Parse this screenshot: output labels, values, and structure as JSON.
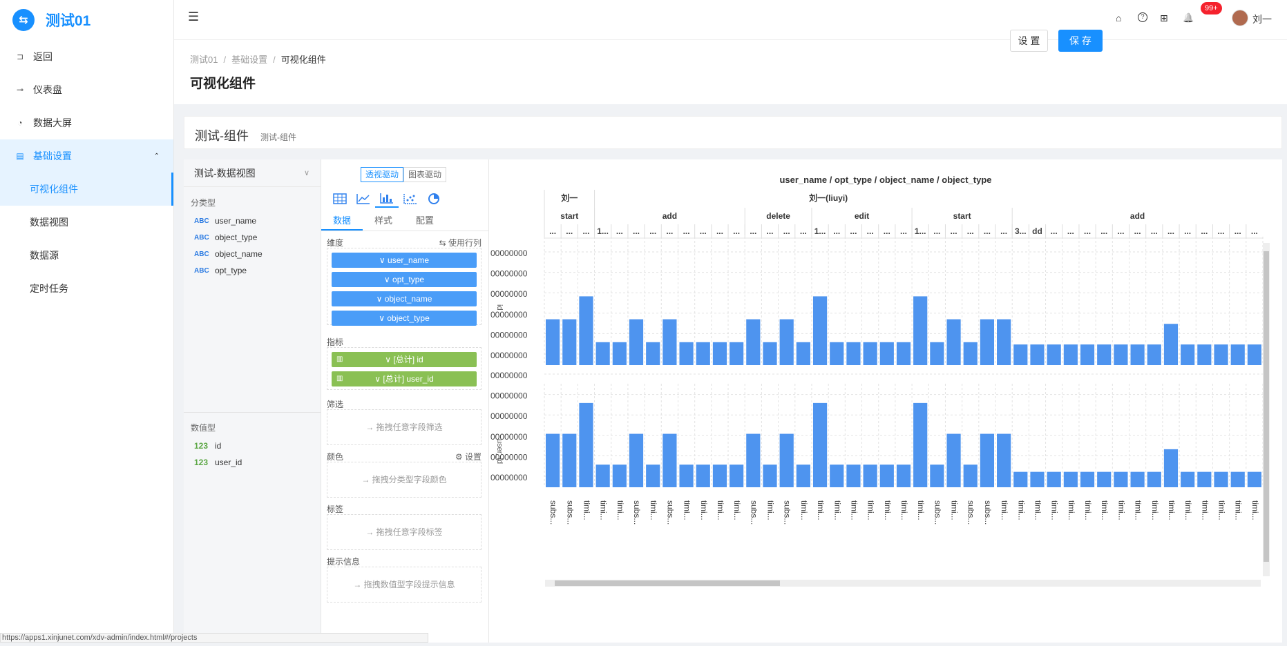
{
  "app": {
    "logo_glyph": "⇆",
    "title": "测试01"
  },
  "sidebar": {
    "items": [
      {
        "icon": "back-icon",
        "glyph": "⊐",
        "label": "返回"
      },
      {
        "icon": "dashboard-icon",
        "glyph": "⊸",
        "label": "仪表盘"
      },
      {
        "icon": "screen-icon",
        "glyph": "◔",
        "label": "数据大屏"
      },
      {
        "icon": "settings-doc-icon",
        "glyph": "▤",
        "label": "基础设置"
      }
    ],
    "caret": "⌃",
    "subitems": [
      {
        "label": "可视化组件"
      },
      {
        "label": "数据视图"
      },
      {
        "label": "数据源"
      },
      {
        "label": "定时任务"
      }
    ]
  },
  "header": {
    "menu_toggle": "☰",
    "icons": {
      "home": "⌂",
      "help": "?",
      "apps": "⊞",
      "bell": "🔔"
    },
    "badge": "99+",
    "user": "刘一"
  },
  "breadcrumb": {
    "items": [
      "测试01",
      "基础设置",
      "可视化组件"
    ],
    "sep": "/"
  },
  "page_title": "可视化组件",
  "buttons": {
    "settings": "设 置",
    "save": "保 存"
  },
  "component": {
    "name": "测试-组件",
    "sub": "测试-组件"
  },
  "fields": {
    "view": "测试-数据视图",
    "chevron": "∨",
    "category_label": "分类型",
    "category_type": "ABC",
    "category": [
      "user_name",
      "object_type",
      "object_name",
      "opt_type"
    ],
    "numeric_label": "数值型",
    "numeric_type": "123",
    "numeric": [
      "id",
      "user_id"
    ]
  },
  "config": {
    "mode_pivot": "透视驱动",
    "mode_chart": "图表驱动",
    "tabs": [
      "数据",
      "样式",
      "配置"
    ],
    "dim_label": "维度",
    "dim_action": "⇆ 使用行列",
    "dimensions": [
      "∨ user_name",
      "∨ opt_type",
      "∨ object_name",
      "∨ object_type"
    ],
    "metric_label": "指标",
    "metrics": [
      "∨ [总计] id",
      "∨ [总计] user_id"
    ],
    "filter_label": "筛选",
    "filter_hint": "→ 拖拽任意字段筛选",
    "color_label": "颜色",
    "color_action": "⚙ 设置",
    "color_hint": "→ 拖拽分类型字段颜色",
    "tag_label": "标签",
    "tag_hint": "→ 拖拽任意字段标签",
    "tooltip_label": "提示信息",
    "tooltip_hint": "→ 拖拽数值型字段提示信息"
  },
  "chart_data": {
    "type": "bar",
    "title": "user_name / opt_type / object_name / object_type",
    "header_levels": [
      [
        {
          "label": "刘一",
          "span": 3
        },
        {
          "label": "刘一(liuyi)",
          "span": 40
        }
      ],
      [
        {
          "label": "start",
          "span": 3
        },
        {
          "label": "add",
          "span": 9
        },
        {
          "label": "delete",
          "span": 4
        },
        {
          "label": "edit",
          "span": 6
        },
        {
          "label": "start",
          "span": 6
        },
        {
          "label": "add",
          "span": 15
        }
      ],
      {
        "col_labels": [
          "...",
          "...",
          "...",
          "1...",
          "...",
          "...",
          "...",
          "...",
          "...",
          "...",
          "...",
          "...",
          "...",
          "...",
          "...",
          "...",
          "1...",
          "...",
          "...",
          "...",
          "...",
          "...",
          "1...",
          "...",
          "...",
          "...",
          "...",
          "...",
          "3...",
          "dd",
          "...",
          "...",
          "...",
          "...",
          "...",
          "...",
          "...",
          "...",
          "...",
          "...",
          "...",
          "...",
          "..."
        ]
      }
    ],
    "x_labels": [
      "subs...",
      "subs...",
      "timi...",
      "timi...",
      "timi...",
      "subs...",
      "timi...",
      "subs...",
      "timi...",
      "timi...",
      "timi...",
      "timi...",
      "subs...",
      "timi...",
      "subs...",
      "timi...",
      "timi...",
      "timi...",
      "timi...",
      "timi...",
      "timi...",
      "timi...",
      "timi...",
      "subs...",
      "timi...",
      "subs...",
      "subs...",
      "timi...",
      "timi...",
      "timi...",
      "timi...",
      "timi...",
      "timi...",
      "timi...",
      "timi...",
      "timi...",
      "timi...",
      "timi...",
      "timi...",
      "timi...",
      "timi...",
      "timi...",
      "timi..."
    ],
    "y_tick_labels_top": [
      "00000000",
      "00000000",
      "00000000",
      "00000000",
      "00000000",
      "00000000"
    ],
    "y_tick_labels_bottom": [
      "00000000",
      "00000000",
      "00000000",
      "00000000",
      "00000000",
      "00000000"
    ],
    "series": [
      {
        "name": "id",
        "color": "#4e94ef",
        "values": [
          2,
          2,
          3,
          1,
          1,
          2,
          1,
          2,
          1,
          1,
          1,
          1,
          2,
          1,
          2,
          1,
          3,
          1,
          1,
          1,
          1,
          1,
          3,
          1,
          2,
          1,
          2,
          2,
          0.9,
          0.9,
          0.9,
          0.9,
          0.9,
          0.9,
          0.9,
          0.9,
          0.9,
          1.8,
          0.9,
          0.9,
          0.9,
          0.9,
          0.9
        ]
      },
      {
        "name": "user_id",
        "color": "#4e94ef",
        "values": [
          2.6,
          2.6,
          4.1,
          1.1,
          1.1,
          2.6,
          1.1,
          2.6,
          1.1,
          1.1,
          1.1,
          1.1,
          2.6,
          1.1,
          2.6,
          1.1,
          4.1,
          1.1,
          1.1,
          1.1,
          1.1,
          1.1,
          4.1,
          1.1,
          2.6,
          1.1,
          2.6,
          2.6,
          0.75,
          0.75,
          0.75,
          0.75,
          0.75,
          0.75,
          0.75,
          0.75,
          0.75,
          1.85,
          0.75,
          0.75,
          0.75,
          0.75,
          0.75
        ]
      }
    ],
    "y_axis_labels": [
      "id",
      "user_id"
    ],
    "grid": true
  },
  "status_url": "https://apps1.xinjunet.com/xdv-admin/index.html#/projects"
}
